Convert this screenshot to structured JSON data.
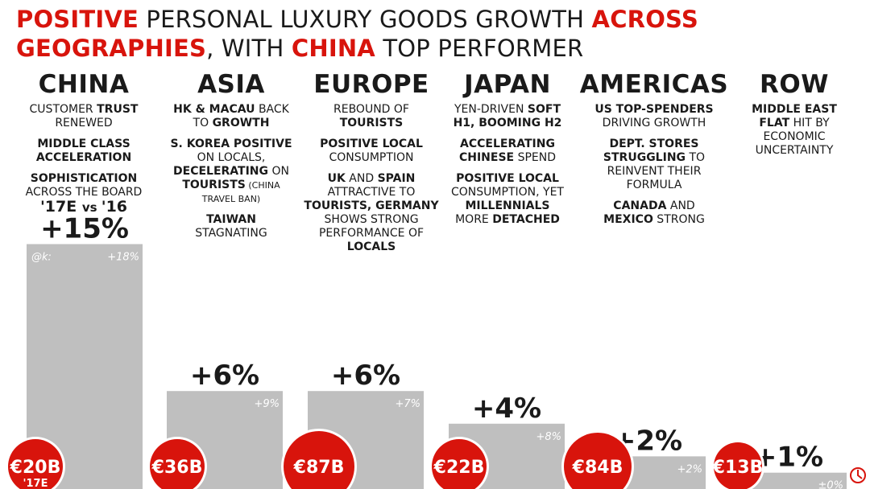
{
  "title": {
    "line1": [
      {
        "text": "POSITIVE",
        "hl": true
      },
      {
        "text": " PERSONAL LUXURY GOODS GROWTH ",
        "hl": false
      },
      {
        "text": "ACROSS",
        "hl": true
      }
    ],
    "line2": [
      {
        "text": "GEOGRAPHIES",
        "hl": true
      },
      {
        "text": ", WITH ",
        "hl": false
      },
      {
        "text": "CHINA",
        "hl": true
      },
      {
        "text": " TOP PERFORMER",
        "hl": false
      }
    ]
  },
  "comparison": {
    "a": "'17E",
    "vs": "vs",
    "b": "'16"
  },
  "colors": {
    "accent": "#d8140c",
    "bar": "#bfbfbf",
    "text": "#1a1a1a"
  },
  "watermark_text": "@k:",
  "columns": [
    {
      "region": "CHINA",
      "blocks": [
        [
          [
            {
              "t": "CUSTOMER ",
              "b": false
            },
            {
              "t": "TRUST",
              "b": true
            }
          ],
          [
            {
              "t": "RENEWED",
              "b": false
            }
          ]
        ],
        [
          [
            {
              "t": "MIDDLE CLASS",
              "b": true
            }
          ],
          [
            {
              "t": "ACCELERATION",
              "b": true
            }
          ]
        ],
        [
          [
            {
              "t": "SOPHISTICATION",
              "b": true
            }
          ],
          [
            {
              "t": "ACROSS THE BOARD",
              "b": false
            }
          ]
        ]
      ]
    },
    {
      "region": "ASIA",
      "blocks": [
        [
          [
            {
              "t": "HK & MACAU",
              "b": true
            },
            {
              "t": " BACK",
              "b": false
            }
          ],
          [
            {
              "t": "TO ",
              "b": false
            },
            {
              "t": "GROWTH",
              "b": true
            }
          ]
        ],
        [
          [
            {
              "t": "S. KOREA POSITIVE",
              "b": true
            }
          ],
          [
            {
              "t": "ON LOCALS,",
              "b": false
            }
          ],
          [
            {
              "t": "DECELERATING",
              "b": true
            },
            {
              "t": " ON",
              "b": false
            }
          ],
          [
            {
              "t": "TOURISTS",
              "b": true
            },
            {
              "t": " (CHINA",
              "b": false,
              "s": true
            }
          ],
          [
            {
              "t": "TRAVEL BAN)",
              "b": false,
              "s": true
            }
          ]
        ],
        [
          [
            {
              "t": "TAIWAN",
              "b": true
            }
          ],
          [
            {
              "t": "STAGNATING",
              "b": false
            }
          ]
        ]
      ]
    },
    {
      "region": "EUROPE",
      "blocks": [
        [
          [
            {
              "t": "REBOUND OF",
              "b": false
            }
          ],
          [
            {
              "t": "TOURISTS",
              "b": true
            }
          ]
        ],
        [
          [
            {
              "t": "POSITIVE LOCAL",
              "b": true
            }
          ],
          [
            {
              "t": "CONSUMPTION",
              "b": false
            }
          ]
        ],
        [
          [
            {
              "t": "UK",
              "b": true
            },
            {
              "t": " AND ",
              "b": false
            },
            {
              "t": "SPAIN",
              "b": true
            }
          ],
          [
            {
              "t": "ATTRACTIVE TO",
              "b": false
            }
          ],
          [
            {
              "t": "TOURISTS, GERMANY",
              "b": true
            }
          ],
          [
            {
              "t": "SHOWS STRONG",
              "b": false
            }
          ],
          [
            {
              "t": "PERFORMANCE OF",
              "b": false
            }
          ],
          [
            {
              "t": "LOCALS",
              "b": true
            }
          ]
        ]
      ]
    },
    {
      "region": "JAPAN",
      "blocks": [
        [
          [
            {
              "t": "YEN-DRIVEN ",
              "b": false
            },
            {
              "t": "SOFT",
              "b": true
            }
          ],
          [
            {
              "t": "H1, BOOMING H2",
              "b": true
            }
          ]
        ],
        [
          [
            {
              "t": "ACCELERATING",
              "b": true
            }
          ],
          [
            {
              "t": "CHINESE",
              "b": true
            },
            {
              "t": " SPEND",
              "b": false
            }
          ]
        ],
        [
          [
            {
              "t": "POSITIVE LOCAL",
              "b": true
            }
          ],
          [
            {
              "t": "CONSUMPTION, YET",
              "b": false
            }
          ],
          [
            {
              "t": "MILLENNIALS",
              "b": true
            }
          ],
          [
            {
              "t": "MORE ",
              "b": false
            },
            {
              "t": "DETACHED",
              "b": true
            }
          ]
        ]
      ]
    },
    {
      "region": "AMERICAS",
      "blocks": [
        [
          [
            {
              "t": "US TOP-SPENDERS",
              "b": true
            }
          ],
          [
            {
              "t": "DRIVING GROWTH",
              "b": false
            }
          ]
        ],
        [
          [
            {
              "t": "DEPT. STORES",
              "b": true
            }
          ],
          [
            {
              "t": "STRUGGLING",
              "b": true
            },
            {
              "t": " TO",
              "b": false
            }
          ],
          [
            {
              "t": "REINVENT THEIR",
              "b": false
            }
          ],
          [
            {
              "t": "FORMULA",
              "b": false
            }
          ]
        ],
        [
          [
            {
              "t": "CANADA",
              "b": true
            },
            {
              "t": " AND",
              "b": false
            }
          ],
          [
            {
              "t": "MEXICO",
              "b": true
            },
            {
              "t": " STRONG",
              "b": false
            }
          ]
        ]
      ]
    },
    {
      "region": "ROW",
      "blocks": [
        [
          [
            {
              "t": "MIDDLE EAST",
              "b": true
            }
          ],
          [
            {
              "t": "FLAT",
              "b": true
            },
            {
              "t": " HIT BY",
              "b": false
            }
          ],
          [
            {
              "t": "ECONOMIC",
              "b": false
            }
          ],
          [
            {
              "t": "UNCERTAINTY",
              "b": false
            }
          ]
        ]
      ]
    }
  ],
  "chart_data": {
    "type": "bar",
    "categories": [
      "CHINA",
      "ASIA",
      "EUROPE",
      "JAPAN",
      "AMERICAS",
      "ROW"
    ],
    "growth_labels": [
      "+15%",
      "+6%",
      "+6%",
      "+4%",
      "+2%",
      "+1%"
    ],
    "growth_values": [
      15,
      6,
      6,
      4,
      2,
      1
    ],
    "secondary_labels": [
      "+18%",
      "+9%",
      "+7%",
      "+8%",
      "+2%",
      "±0%"
    ],
    "market_size_labels": [
      "€20B",
      "€36B",
      "€87B",
      "€22B",
      "€84B",
      "€13B"
    ],
    "market_size_values_eur_b": [
      20,
      36,
      87,
      22,
      84,
      13
    ],
    "market_size_sublabels": [
      "'17E",
      "",
      "",
      "",
      "",
      ""
    ]
  }
}
